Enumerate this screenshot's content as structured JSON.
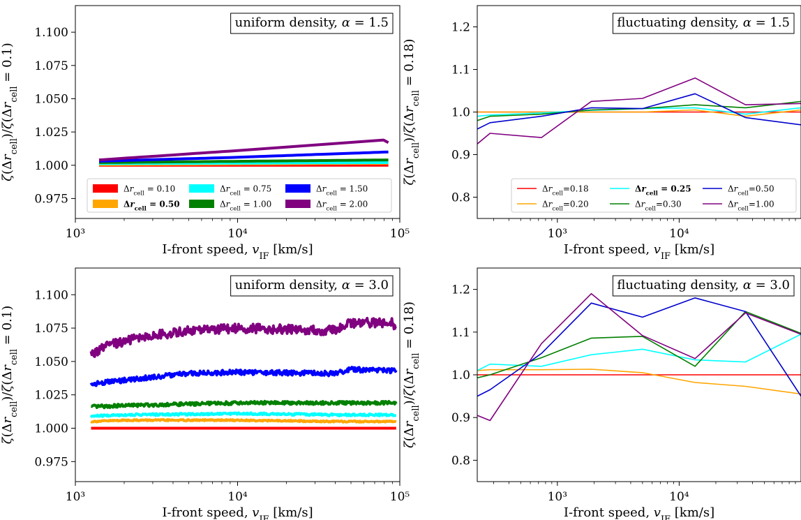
{
  "figure": {
    "background": "#ffffff"
  },
  "chart_data": [
    {
      "type": "line",
      "title": "uniform density, α = 1.5",
      "xlabel": "I-front speed, v_IF [km/s]",
      "ylabel": "ζ(Δr_cell)/ζ(Δr_cell = 0.1)",
      "xscale": "log",
      "xlim": [
        1000,
        100000
      ],
      "ylim": [
        0.96,
        1.12
      ],
      "xticks": [
        {
          "value": 1000,
          "label": "10³"
        },
        {
          "value": 10000,
          "label": "10⁴"
        },
        {
          "value": 100000,
          "label": "10⁵"
        }
      ],
      "yticks": [
        {
          "value": 0.975,
          "label": "0.975"
        },
        {
          "value": 1.0,
          "label": "1.000"
        },
        {
          "value": 1.025,
          "label": "1.025"
        },
        {
          "value": 1.05,
          "label": "1.050"
        },
        {
          "value": 1.075,
          "label": "1.075"
        },
        {
          "value": 1.1,
          "label": "1.100"
        }
      ],
      "legend_placement": "lower-center",
      "legend_columns": 3,
      "series": [
        {
          "name": "Δr_cell = 0.10",
          "bold": false,
          "color": "#ff0000",
          "lineweight": "thick",
          "noise": 0,
          "x": [
            1400,
            85000
          ],
          "y": [
            1.0,
            1.0
          ]
        },
        {
          "name": "Δr_cell = 0.50",
          "bold": true,
          "color": "#ffa500",
          "lineweight": "thick",
          "noise": 0,
          "x": [
            1400,
            85000
          ],
          "y": [
            1.0005,
            1.0015
          ]
        },
        {
          "name": "Δr_cell = 0.75",
          "bold": false,
          "color": "#00ffff",
          "lineweight": "thick",
          "noise": 0,
          "x": [
            1400,
            85000
          ],
          "y": [
            1.0012,
            1.002
          ]
        },
        {
          "name": "Δr_cell = 1.00",
          "bold": false,
          "color": "#008000",
          "lineweight": "thick",
          "noise": 0,
          "x": [
            1400,
            85000
          ],
          "y": [
            1.002,
            1.004
          ]
        },
        {
          "name": "Δr_cell = 1.50",
          "bold": false,
          "color": "#0000ff",
          "lineweight": "thick",
          "noise": 0,
          "x": [
            1400,
            10000,
            85000
          ],
          "y": [
            1.003,
            1.006,
            1.01
          ]
        },
        {
          "name": "Δr_cell = 2.00",
          "bold": false,
          "color": "#800080",
          "lineweight": "thick",
          "noise": 0,
          "x": [
            1400,
            10000,
            80000,
            85000
          ],
          "y": [
            1.004,
            1.011,
            1.019,
            1.017
          ]
        }
      ]
    },
    {
      "type": "line",
      "title": "fluctuating density, α = 1.5",
      "xlabel": "I-front speed, v_IF [km/s]",
      "ylabel": "ζ(Δr_cell)/ζ(Δr_cell = 0.18)",
      "xscale": "log",
      "xlim": [
        220,
        100000
      ],
      "ylim": [
        0.75,
        1.25
      ],
      "xticks": [
        {
          "value": 1000,
          "label": "10³"
        },
        {
          "value": 10000,
          "label": "10⁴"
        }
      ],
      "yticks": [
        {
          "value": 0.8,
          "label": "0.8"
        },
        {
          "value": 0.9,
          "label": "0.9"
        },
        {
          "value": 1.0,
          "label": "1.0"
        },
        {
          "value": 1.1,
          "label": "1.1"
        },
        {
          "value": 1.2,
          "label": "1.2"
        }
      ],
      "legend_placement": "lower-right",
      "legend_columns": 3,
      "series": [
        {
          "name": "Δr_cell=0.18",
          "bold": false,
          "color": "#ff0000",
          "lineweight": "thin",
          "noise": 0,
          "x": [
            220,
            100000
          ],
          "y": [
            1.0,
            1.0
          ]
        },
        {
          "name": "Δr_cell=0.20",
          "bold": false,
          "color": "#ffa500",
          "lineweight": "thin",
          "noise": 0,
          "x": [
            220,
            1900,
            5000,
            13500,
            35000,
            100000
          ],
          "y": [
            1.0,
            1.0,
            1.0,
            1.005,
            0.99,
            1.005
          ]
        },
        {
          "name": "Δr_cell = 0.25",
          "bold": true,
          "color": "#00ffff",
          "lineweight": "thin",
          "noise": 0,
          "x": [
            220,
            280,
            740,
            1900,
            5000,
            13500,
            35000,
            100000
          ],
          "y": [
            0.99,
            0.993,
            0.998,
            1.004,
            1.008,
            1.01,
            0.995,
            1.01
          ]
        },
        {
          "name": "Δr_cell=0.30",
          "bold": false,
          "color": "#008000",
          "lineweight": "thin",
          "noise": 0,
          "x": [
            220,
            280,
            740,
            1900,
            5000,
            13500,
            35000,
            100000
          ],
          "y": [
            0.98,
            0.99,
            0.995,
            1.005,
            1.008,
            1.017,
            1.01,
            1.025
          ]
        },
        {
          "name": "Δr_cell=0.50",
          "bold": false,
          "color": "#0000cd",
          "lineweight": "thin",
          "noise": 0,
          "x": [
            220,
            280,
            740,
            1900,
            5000,
            13500,
            35000,
            100000
          ],
          "y": [
            0.96,
            0.975,
            0.99,
            1.01,
            1.008,
            1.043,
            0.987,
            0.97
          ]
        },
        {
          "name": "Δr_cell=1.00",
          "bold": false,
          "color": "#800080",
          "lineweight": "thin",
          "noise": 0,
          "x": [
            220,
            280,
            740,
            1900,
            5000,
            13500,
            35000,
            100000
          ],
          "y": [
            0.925,
            0.95,
            0.94,
            1.025,
            1.032,
            1.08,
            1.017,
            1.02
          ]
        }
      ]
    },
    {
      "type": "line",
      "title": "uniform density, α = 3.0",
      "xlabel": "I-front speed, v_IF [km/s]",
      "ylabel": "ζ(Δr_cell)/ζ(Δr_cell = 0.1)",
      "xscale": "log",
      "xlim": [
        1000,
        100000
      ],
      "ylim": [
        0.96,
        1.12
      ],
      "xticks": [
        {
          "value": 1000,
          "label": "10³"
        },
        {
          "value": 10000,
          "label": "10⁴"
        },
        {
          "value": 100000,
          "label": "10⁵"
        }
      ],
      "yticks": [
        {
          "value": 0.975,
          "label": "0.975"
        },
        {
          "value": 1.0,
          "label": "1.000"
        },
        {
          "value": 1.025,
          "label": "1.025"
        },
        {
          "value": 1.05,
          "label": "1.050"
        },
        {
          "value": 1.075,
          "label": "1.075"
        },
        {
          "value": 1.1,
          "label": "1.100"
        }
      ],
      "series": [
        {
          "color": "#ff0000",
          "lineweight": "thick",
          "noise": 0,
          "x": [
            1250,
            95000
          ],
          "y": [
            1.0,
            1.0
          ]
        },
        {
          "color": "#ffa500",
          "lineweight": "thick",
          "noise": 0.0005,
          "x": [
            1250,
            2000,
            10000,
            40000,
            95000
          ],
          "y": [
            1.005,
            1.006,
            1.006,
            1.005,
            1.005
          ]
        },
        {
          "color": "#00ffff",
          "lineweight": "thick",
          "noise": 0.0008,
          "x": [
            1250,
            2000,
            10000,
            40000,
            95000
          ],
          "y": [
            1.009,
            1.01,
            1.011,
            1.01,
            1.01
          ]
        },
        {
          "color": "#008000",
          "lineweight": "thick",
          "noise": 0.0012,
          "x": [
            1250,
            2000,
            10000,
            40000,
            95000
          ],
          "y": [
            1.016,
            1.017,
            1.019,
            1.019,
            1.019
          ]
        },
        {
          "color": "#0000ff",
          "lineweight": "thick",
          "noise": 0.0018,
          "x": [
            1250,
            2000,
            5000,
            10000,
            40000,
            50000,
            95000
          ],
          "y": [
            1.033,
            1.036,
            1.041,
            1.042,
            1.041,
            1.044,
            1.043
          ]
        },
        {
          "color": "#800080",
          "lineweight": "thick",
          "noise": 0.0035,
          "x": [
            1250,
            1600,
            2500,
            5000,
            10000,
            40000,
            50000,
            90000,
            95000
          ],
          "y": [
            1.055,
            1.062,
            1.068,
            1.073,
            1.075,
            1.073,
            1.079,
            1.079,
            1.076
          ]
        }
      ]
    },
    {
      "type": "line",
      "title": "fluctuating density, α = 3.0",
      "xlabel": "I-front speed, v_IF [km/s]",
      "ylabel": "ζ(Δr_cell)/ζ(Δr_cell = 0.18)",
      "xscale": "log",
      "xlim": [
        220,
        100000
      ],
      "ylim": [
        0.75,
        1.25
      ],
      "xticks": [
        {
          "value": 1000,
          "label": "10³"
        },
        {
          "value": 10000,
          "label": "10⁴"
        }
      ],
      "yticks": [
        {
          "value": 0.8,
          "label": "0.8"
        },
        {
          "value": 0.9,
          "label": "0.9"
        },
        {
          "value": 1.0,
          "label": "1.0"
        },
        {
          "value": 1.1,
          "label": "1.1"
        },
        {
          "value": 1.2,
          "label": "1.2"
        }
      ],
      "series": [
        {
          "color": "#ff0000",
          "lineweight": "thin",
          "noise": 0,
          "x": [
            220,
            100000
          ],
          "y": [
            1.0,
            1.0
          ]
        },
        {
          "color": "#ffa500",
          "lineweight": "thin",
          "noise": 0,
          "x": [
            220,
            280,
            740,
            1900,
            5000,
            13500,
            35000,
            100000
          ],
          "y": [
            1.01,
            1.012,
            1.012,
            1.013,
            1.005,
            0.982,
            0.973,
            0.955
          ]
        },
        {
          "color": "#00ffff",
          "lineweight": "thin",
          "noise": 0,
          "x": [
            220,
            280,
            740,
            1900,
            5000,
            13500,
            35000,
            100000
          ],
          "y": [
            1.01,
            1.025,
            1.02,
            1.047,
            1.06,
            1.035,
            1.03,
            1.095
          ]
        },
        {
          "color": "#008000",
          "lineweight": "thin",
          "noise": 0,
          "x": [
            220,
            280,
            740,
            1900,
            5000,
            13500,
            35000,
            100000
          ],
          "y": [
            0.993,
            1.0,
            1.04,
            1.086,
            1.09,
            1.02,
            1.148,
            1.097
          ]
        },
        {
          "color": "#0000cd",
          "lineweight": "thin",
          "noise": 0,
          "x": [
            220,
            280,
            740,
            1900,
            5000,
            13500,
            35000,
            100000
          ],
          "y": [
            0.95,
            0.965,
            1.05,
            1.168,
            1.135,
            1.18,
            1.148,
            0.95
          ]
        },
        {
          "color": "#800080",
          "lineweight": "thin",
          "noise": 0,
          "x": [
            220,
            280,
            740,
            1900,
            5000,
            13500,
            35000,
            100000
          ],
          "y": [
            0.905,
            0.893,
            1.073,
            1.19,
            1.092,
            1.038,
            1.145,
            1.095
          ]
        }
      ]
    }
  ]
}
